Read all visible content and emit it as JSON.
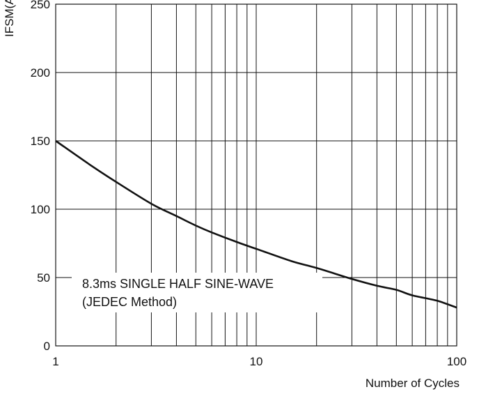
{
  "chart_data": {
    "type": "line",
    "title": "",
    "xlabel": "Number of Cycles",
    "ylabel": "IFSM(A)",
    "xscale": "log",
    "xlim": [
      1,
      100
    ],
    "ylim": [
      0,
      250
    ],
    "x_ticks": [
      "1",
      "10",
      "100"
    ],
    "y_ticks": [
      "0",
      "50",
      "100",
      "150",
      "200",
      "250"
    ],
    "grid": true,
    "series": [
      {
        "x": [
          1,
          1.5,
          2,
          3,
          4,
          5,
          6,
          8,
          10,
          15,
          20,
          30,
          40,
          50,
          60,
          80,
          100
        ],
        "y": [
          150,
          132,
          120,
          104,
          95,
          88,
          83,
          76,
          71,
          62,
          57,
          49,
          44,
          41,
          37,
          33,
          28
        ]
      }
    ],
    "annotation": [
      "8.3ms SINGLE HALF SINE-WAVE",
      "(JEDEC Method)"
    ]
  }
}
